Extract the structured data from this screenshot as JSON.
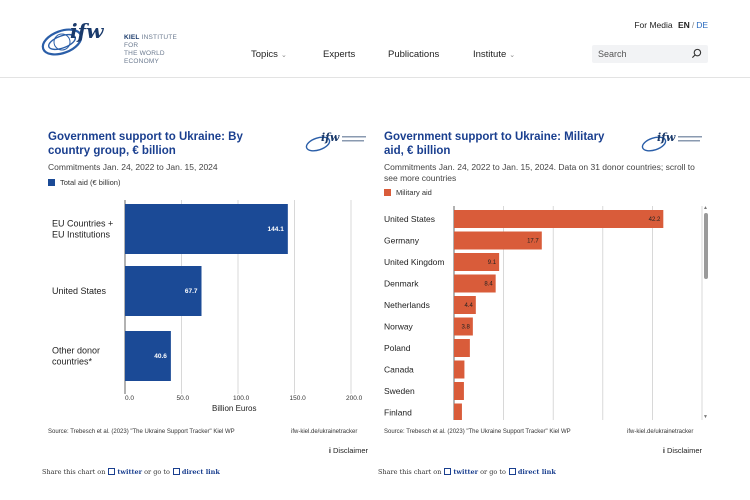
{
  "header": {
    "logo_brand": "ifw",
    "logo_line1": "KIEL",
    "logo_line1b": "INSTITUTE FOR",
    "logo_line2": "THE WORLD ECONOMY",
    "for_media": "For Media",
    "lang_en": "EN",
    "lang_sep": "/",
    "lang_de": "DE",
    "nav": [
      {
        "label": "Topics",
        "chevron": true
      },
      {
        "label": "Experts",
        "chevron": false
      },
      {
        "label": "Publications",
        "chevron": false
      },
      {
        "label": "Institute",
        "chevron": true
      }
    ],
    "search_placeholder": "Search"
  },
  "colors": {
    "blue": "#1b4a96",
    "orange": "#d95c3a",
    "title": "#1a3f8f"
  },
  "left_panel": {
    "title": "Government support to Ukraine: By country group, € billion",
    "subtitle": "Commitments Jan. 24, 2022 to Jan. 15, 2024",
    "legend": "Total aid (€ billion)",
    "source": "Source: Trebesch et al. (2023) \"The Ukraine Support Tracker\" Kiel WP",
    "source_link": "ifw-kiel.de/ukrainetracker",
    "disclaimer": "Disclaimer",
    "share_prefix": "Share this chart on",
    "share_twitter": "twitter",
    "share_mid": "or go to",
    "share_direct": "direct link"
  },
  "right_panel": {
    "title": "Government support to Ukraine: Military aid, € billion",
    "subtitle": "Commitments Jan. 24, 2022 to Jan. 15, 2024. Data on 31 donor countries; scroll to see more countries",
    "legend": "Military aid",
    "source": "Source: Trebesch et al. (2023) \"The Ukraine Support Tracker\" Kiel WP",
    "source_link": "ifw-kiel.de/ukrainetracker",
    "disclaimer": "Disclaimer",
    "share_prefix": "Share this chart on",
    "share_twitter": "twitter",
    "share_mid": "or go to",
    "share_direct": "direct link"
  },
  "chart_data": [
    {
      "type": "bar",
      "orientation": "horizontal",
      "title": "Government support to Ukraine: By country group, € billion",
      "subtitle": "Commitments Jan. 24, 2022 to Jan. 15, 2024",
      "categories": [
        "EU Countries + EU Institutions",
        "United States",
        "Other donor countries*"
      ],
      "series": [
        {
          "name": "Total aid (€ billion)",
          "values": [
            144.1,
            67.7,
            40.6
          ],
          "labels": [
            "144.1",
            "67.7",
            "40.6"
          ]
        }
      ],
      "xlabel": "Billion Euros",
      "xlim": [
        0,
        200
      ],
      "xticks": [
        0,
        50,
        100,
        150,
        200
      ],
      "xtick_labels": [
        "0.0",
        "50.0",
        "100.0",
        "150.0",
        "200.0"
      ],
      "grid": true,
      "legend": "top-left"
    },
    {
      "type": "bar",
      "orientation": "horizontal",
      "title": "Government support to Ukraine: Military aid, € billion",
      "subtitle": "Commitments Jan. 24, 2022 to Jan. 15, 2024. Data on 31 donor countries; scroll to see more countries",
      "categories": [
        "United States",
        "Germany",
        "United Kingdom",
        "Denmark",
        "Netherlands",
        "Norway",
        "Poland",
        "Canada",
        "Sweden",
        "Finland"
      ],
      "series": [
        {
          "name": "Military aid",
          "values": [
            42.2,
            17.7,
            9.1,
            8.4,
            4.4,
            3.8,
            3.2,
            2.1,
            2.0,
            1.6
          ],
          "labels": [
            "42.2",
            "17.7",
            "9.1",
            "8.4",
            "4.4",
            "3.8",
            "",
            "",
            "",
            ""
          ]
        }
      ],
      "xlim": [
        0,
        50
      ],
      "grid": true,
      "legend": "top-left"
    }
  ]
}
